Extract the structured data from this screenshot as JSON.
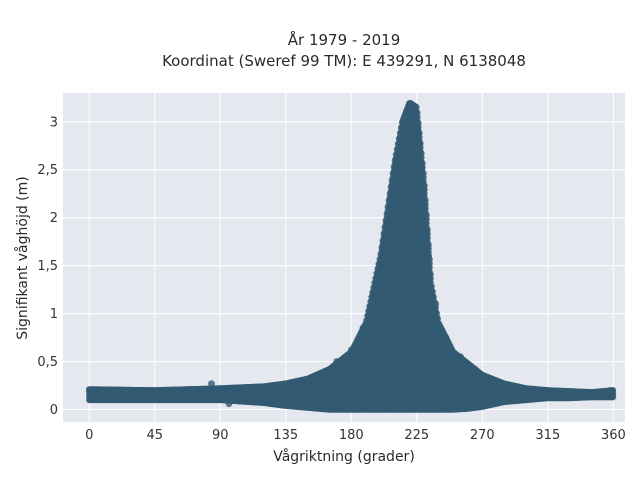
{
  "chart_data": {
    "type": "scatter",
    "title_lines": [
      "År 1979 - 2019",
      "Koordinat (Sweref 99 TM): E 439291, N 6138048"
    ],
    "xlabel": "Vågriktning (grader)",
    "ylabel": "Signifikant våghöjd (m)",
    "xlim": [
      -18,
      368
    ],
    "ylim": [
      -0.13,
      3.3
    ],
    "x_ticks": [
      0,
      45,
      90,
      135,
      180,
      225,
      270,
      315,
      360
    ],
    "x_tick_labels": [
      "0",
      "45",
      "90",
      "135",
      "180",
      "225",
      "270",
      "315",
      "360"
    ],
    "y_ticks": [
      0,
      0.5,
      1,
      1.5,
      2,
      2.5,
      3
    ],
    "y_tick_labels": [
      "0",
      "0,5",
      "1",
      "1,5",
      "2",
      "2,5",
      "3"
    ],
    "grid": true,
    "legend": "none",
    "colors": {
      "background": "#e6e8f0",
      "grid": "#ffffff",
      "point": "#325a72"
    },
    "envelope": {
      "x": [
        0,
        45,
        90,
        120,
        135,
        150,
        165,
        180,
        190,
        200,
        210,
        215,
        220,
        225,
        230,
        235,
        240,
        250,
        260,
        270,
        285,
        300,
        315,
        330,
        345,
        360
      ],
      "ymax": [
        0.21,
        0.2,
        0.22,
        0.24,
        0.27,
        0.32,
        0.42,
        0.6,
        0.9,
        1.6,
        2.6,
        3.0,
        3.2,
        3.15,
        2.4,
        1.3,
        0.9,
        0.6,
        0.48,
        0.36,
        0.27,
        0.22,
        0.2,
        0.19,
        0.18,
        0.2
      ],
      "ymin": [
        0.1,
        0.1,
        0.1,
        0.07,
        0.04,
        0.02,
        0.0,
        0.0,
        0.0,
        0.0,
        0.0,
        0.0,
        0.0,
        0.0,
        0.0,
        0.0,
        0.0,
        0.0,
        0.01,
        0.03,
        0.08,
        0.1,
        0.12,
        0.12,
        0.13,
        0.13
      ]
    },
    "points": [
      [
        0,
        0.2
      ],
      [
        5,
        0.12
      ],
      [
        15,
        0.18
      ],
      [
        30,
        0.16
      ],
      [
        40,
        0.11
      ],
      [
        60,
        0.19
      ],
      [
        75,
        0.13
      ],
      [
        84,
        0.27
      ],
      [
        90,
        0.18
      ],
      [
        96,
        0.06
      ],
      [
        110,
        0.12
      ],
      [
        125,
        0.2
      ],
      [
        140,
        0.05
      ],
      [
        150,
        0.3
      ],
      [
        160,
        0.35
      ],
      [
        170,
        0.5
      ],
      [
        180,
        0.62
      ],
      [
        188,
        0.85
      ],
      [
        195,
        1.2
      ],
      [
        200,
        1.5
      ],
      [
        205,
        1.9
      ],
      [
        210,
        2.3
      ],
      [
        213,
        2.7
      ],
      [
        216,
        2.95
      ],
      [
        218,
        3.1
      ],
      [
        220,
        3.18
      ],
      [
        223,
        3.12
      ],
      [
        226,
        2.9
      ],
      [
        229,
        2.3
      ],
      [
        233,
        1.6
      ],
      [
        238,
        1.1
      ],
      [
        245,
        0.75
      ],
      [
        255,
        0.55
      ],
      [
        265,
        0.42
      ],
      [
        275,
        0.32
      ],
      [
        290,
        0.25
      ],
      [
        300,
        0.2
      ],
      [
        320,
        0.17
      ],
      [
        335,
        0.15
      ],
      [
        350,
        0.18
      ],
      [
        358,
        0.2
      ]
    ]
  }
}
